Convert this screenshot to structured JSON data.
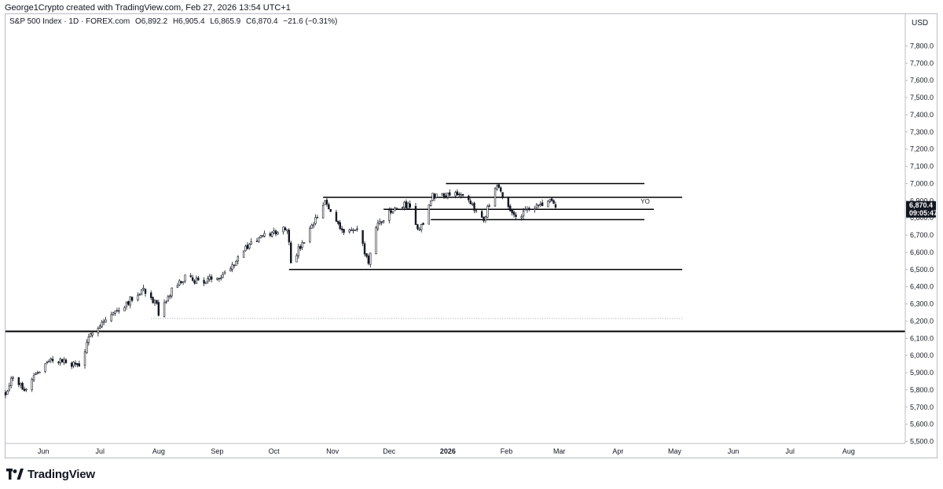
{
  "credit": "George1Crypto created with TradingView.com, Feb 27, 2026 13:54 UTC+1",
  "legend": {
    "symbol": "S&P 500 Index · 1D · FOREX.com",
    "open": "O6,892.2",
    "high": "H6,905.4",
    "low": "L6,865.9",
    "close": "C6,870.4",
    "change": "−21.6 (−0.31%)"
  },
  "currency": "USD",
  "brand": "TradingView",
  "colors": {
    "candle": "#131722",
    "line": "#000000",
    "dotted": "#9aa0a6",
    "tag_bg": "#131722"
  },
  "chart_data": {
    "type": "candlestick",
    "y_axis": {
      "min": 5500,
      "max": 7800,
      "ticks": [
        5500,
        5600,
        5700,
        5800,
        5900,
        6000,
        6100,
        6200,
        6300,
        6400,
        6500,
        6600,
        6700,
        6800,
        6900,
        7000,
        7100,
        7200,
        7300,
        7400,
        7500,
        7600,
        7700,
        7800
      ],
      "tick_labels": [
        "5,500.0",
        "5,600.0",
        "5,700.0",
        "5,800.0",
        "5,900.0",
        "6,000.0",
        "6,100.0",
        "6,200.0",
        "6,300.0",
        "6,400.0",
        "6,500.0",
        "6,600.0",
        "6,700.0",
        "6,800.0",
        "6,900.0",
        "7,000.0",
        "7,100.0",
        "7,200.0",
        "7,300.0",
        "7,400.0",
        "7,500.0",
        "7,600.0",
        "7,700.0",
        "7,800.0"
      ]
    },
    "x_axis": {
      "start": "2025-05-12",
      "end": "2026-08-31",
      "ticks": [
        {
          "date": "2025-06-01",
          "label": "Jun",
          "bold": false
        },
        {
          "date": "2025-07-01",
          "label": "Jul",
          "bold": false
        },
        {
          "date": "2025-08-01",
          "label": "Aug",
          "bold": false
        },
        {
          "date": "2025-09-01",
          "label": "Sep",
          "bold": false
        },
        {
          "date": "2025-10-01",
          "label": "Oct",
          "bold": false
        },
        {
          "date": "2025-11-01",
          "label": "Nov",
          "bold": false
        },
        {
          "date": "2025-12-01",
          "label": "Dec",
          "bold": false
        },
        {
          "date": "2026-01-01",
          "label": "2026",
          "bold": true
        },
        {
          "date": "2026-02-01",
          "label": "Feb",
          "bold": false
        },
        {
          "date": "2026-03-01",
          "label": "Mar",
          "bold": false
        },
        {
          "date": "2026-04-01",
          "label": "Apr",
          "bold": false
        },
        {
          "date": "2026-05-01",
          "label": "May",
          "bold": false
        },
        {
          "date": "2026-06-01",
          "label": "Jun",
          "bold": false
        },
        {
          "date": "2026-07-01",
          "label": "Jul",
          "bold": false
        },
        {
          "date": "2026-08-01",
          "label": "Aug",
          "bold": false
        }
      ]
    },
    "price_path": [
      {
        "date": "2025-05-12",
        "price": 5780
      },
      {
        "date": "2025-05-15",
        "price": 5870
      },
      {
        "date": "2025-05-23",
        "price": 5800
      },
      {
        "date": "2025-05-27",
        "price": 5890
      },
      {
        "date": "2025-06-06",
        "price": 5980
      },
      {
        "date": "2025-06-13",
        "price": 5960
      },
      {
        "date": "2025-06-20",
        "price": 5940
      },
      {
        "date": "2025-06-27",
        "price": 6150
      },
      {
        "date": "2025-07-10",
        "price": 6260
      },
      {
        "date": "2025-07-24",
        "price": 6390
      },
      {
        "date": "2025-07-31",
        "price": 6290
      },
      {
        "date": "2025-08-01",
        "price": 6220
      },
      {
        "date": "2025-08-08",
        "price": 6380
      },
      {
        "date": "2025-08-15",
        "price": 6450
      },
      {
        "date": "2025-08-25",
        "price": 6430
      },
      {
        "date": "2025-09-05",
        "price": 6480
      },
      {
        "date": "2025-09-19",
        "price": 6660
      },
      {
        "date": "2025-10-08",
        "price": 6750
      },
      {
        "date": "2025-10-10",
        "price": 6550
      },
      {
        "date": "2025-10-17",
        "price": 6660
      },
      {
        "date": "2025-10-28",
        "price": 6890
      },
      {
        "date": "2025-11-07",
        "price": 6720
      },
      {
        "date": "2025-11-14",
        "price": 6730
      },
      {
        "date": "2025-11-20",
        "price": 6540
      },
      {
        "date": "2025-11-25",
        "price": 6770
      },
      {
        "date": "2025-12-05",
        "price": 6860
      },
      {
        "date": "2025-12-11",
        "price": 6880
      },
      {
        "date": "2025-12-17",
        "price": 6720
      },
      {
        "date": "2025-12-24",
        "price": 6930
      },
      {
        "date": "2026-01-06",
        "price": 6950
      },
      {
        "date": "2026-01-20",
        "price": 6800
      },
      {
        "date": "2026-01-27",
        "price": 6980
      },
      {
        "date": "2026-02-05",
        "price": 6810
      },
      {
        "date": "2026-02-12",
        "price": 6840
      },
      {
        "date": "2026-02-24",
        "price": 6900
      },
      {
        "date": "2026-02-27",
        "price": 6870
      }
    ],
    "volatility": 28,
    "seed": 7,
    "horizontal_lines": [
      {
        "price": 6140,
        "from": "2025-05-12",
        "to": "2026-08-31",
        "width": 2
      },
      {
        "price": 6500,
        "from": "2025-10-09",
        "to": "2026-05-05",
        "width": 1.5
      },
      {
        "price": 6920,
        "from": "2025-10-27",
        "to": "2026-05-05",
        "width": 1.5
      },
      {
        "price": 6850,
        "from": "2025-11-28",
        "to": "2026-04-20",
        "width": 1.5
      },
      {
        "price": 6790,
        "from": "2025-12-23",
        "to": "2026-04-15",
        "width": 1.5
      },
      {
        "price": 7000,
        "from": "2025-12-31",
        "to": "2026-04-15",
        "width": 1.5
      }
    ],
    "dotted_line": {
      "price": 6215,
      "from": "2025-07-28",
      "to": "2026-05-05"
    },
    "annotations": [
      {
        "text": "YO",
        "date": "2026-04-13",
        "price": 6873
      }
    ],
    "last_price": {
      "label": "6,870.4",
      "countdown": "09:05:47",
      "price": 6870.4
    }
  }
}
